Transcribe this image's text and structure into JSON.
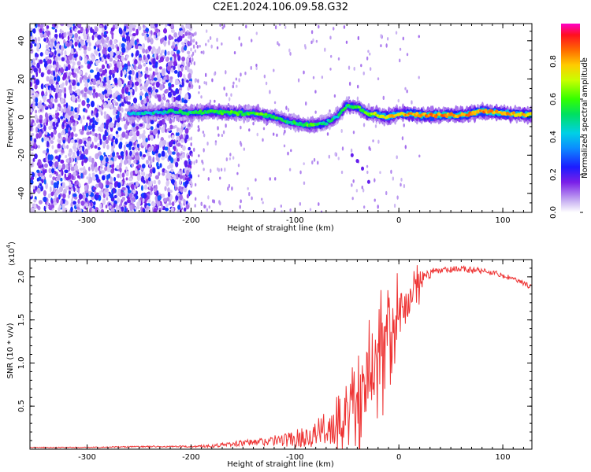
{
  "title": "C2E1.2024.106.09.58.G32",
  "chart_data": [
    {
      "type": "heatmap",
      "xlabel": "Height of straight line (km)",
      "ylabel": "Frequency (Hz)",
      "xlim": [
        -355,
        128
      ],
      "ylim": [
        -50,
        49
      ],
      "x_ticks": [
        -300,
        -200,
        -100,
        0,
        100
      ],
      "x_tick_labels": [
        "-300",
        "-200",
        "-100",
        "0",
        "100"
      ],
      "y_ticks": [
        -40,
        -20,
        0,
        20,
        40
      ],
      "y_tick_labels": [
        "-40",
        "-20",
        "0",
        "20",
        "40"
      ],
      "colorbar": {
        "label": "Normalized spectral amplitude",
        "range": [
          0,
          1
        ],
        "ticks": [
          0.0,
          0.2,
          0.4,
          0.6,
          0.8
        ],
        "tick_labels": [
          "0.0",
          "0.2",
          "0.4",
          "0.6",
          "0.8"
        ]
      },
      "ridge": {
        "x": [
          -260,
          -240,
          -220,
          -200,
          -180,
          -160,
          -140,
          -120,
          -100,
          -90,
          -80,
          -70,
          -60,
          -50,
          -40,
          -30,
          -20,
          -10,
          0,
          20,
          40,
          60,
          80,
          100,
          128
        ],
        "y": [
          2,
          2,
          3,
          2,
          3,
          2,
          2,
          0,
          -3,
          -4,
          -4,
          -3,
          0,
          6,
          5,
          2,
          1,
          0,
          2,
          1,
          1,
          1,
          3,
          2,
          1
        ],
        "amplitude": [
          0.3,
          0.35,
          0.4,
          0.45,
          0.5,
          0.55,
          0.55,
          0.5,
          0.45,
          0.55,
          0.5,
          0.45,
          0.4,
          0.45,
          0.5,
          0.6,
          0.7,
          0.75,
          0.8,
          0.85,
          0.85,
          0.85,
          0.85,
          0.8,
          0.75
        ]
      },
      "noise_region_x": [
        -355,
        -200
      ]
    },
    {
      "type": "line",
      "xlabel": "Height of straight line (km)",
      "ylabel": "SNR (10 * v/v)",
      "y_multiplier_label": "(x10",
      "y_multiplier_exp": "4",
      "y_multiplier_close": ")",
      "xlim": [
        -355,
        128
      ],
      "ylim": [
        0,
        2.2
      ],
      "x_ticks": [
        -300,
        -200,
        -100,
        0,
        100
      ],
      "x_tick_labels": [
        "-300",
        "-200",
        "-100",
        "0",
        "100"
      ],
      "y_ticks": [
        0.5,
        1.0,
        1.5,
        2.0
      ],
      "y_tick_labels": [
        "0.5",
        "1.0",
        "1.5",
        "2.0"
      ],
      "color": "#ee3333",
      "series": [
        {
          "x": [
            -355,
            -300,
            -250,
            -200,
            -180,
            -160,
            -140,
            -120,
            -100,
            -80,
            -60,
            -50,
            -40,
            -30,
            -20,
            -10,
            0,
            10,
            20,
            30,
            40,
            50,
            60,
            70,
            80,
            90,
            100,
            110,
            120,
            128
          ],
          "y": [
            0.02,
            0.02,
            0.03,
            0.03,
            0.04,
            0.06,
            0.08,
            0.1,
            0.12,
            0.18,
            0.3,
            0.45,
            0.7,
            0.9,
            1.1,
            1.3,
            1.55,
            1.75,
            1.95,
            2.04,
            2.07,
            2.08,
            2.09,
            2.08,
            2.07,
            2.05,
            2.01,
            1.98,
            1.92,
            1.88
          ],
          "noise": [
            0.005,
            0.005,
            0.008,
            0.01,
            0.02,
            0.03,
            0.04,
            0.06,
            0.1,
            0.15,
            0.25,
            0.35,
            0.45,
            0.45,
            0.4,
            0.35,
            0.3,
            0.2,
            0.12,
            0.06,
            0.04,
            0.04,
            0.04,
            0.04,
            0.04,
            0.04,
            0.03,
            0.03,
            0.03,
            0.03
          ]
        }
      ]
    }
  ]
}
